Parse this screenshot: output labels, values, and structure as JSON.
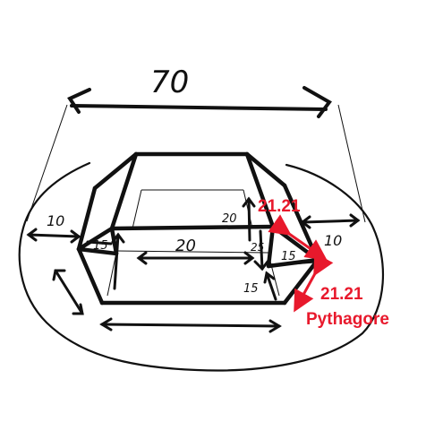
{
  "labels": {
    "top_width": "70",
    "left_width": "10",
    "right_width": "10",
    "center_length": "20",
    "left_slope": "15",
    "right_slope": "15",
    "right_height_upper": "20",
    "right_height_mid": "25",
    "right_height_lower": "15",
    "red_value_top": "21.21",
    "red_value_bottom": "21.21",
    "red_caption": "Pythagore"
  },
  "colors": {
    "ink": "#111111",
    "accent": "#e8192c",
    "background": "#ffffff"
  }
}
